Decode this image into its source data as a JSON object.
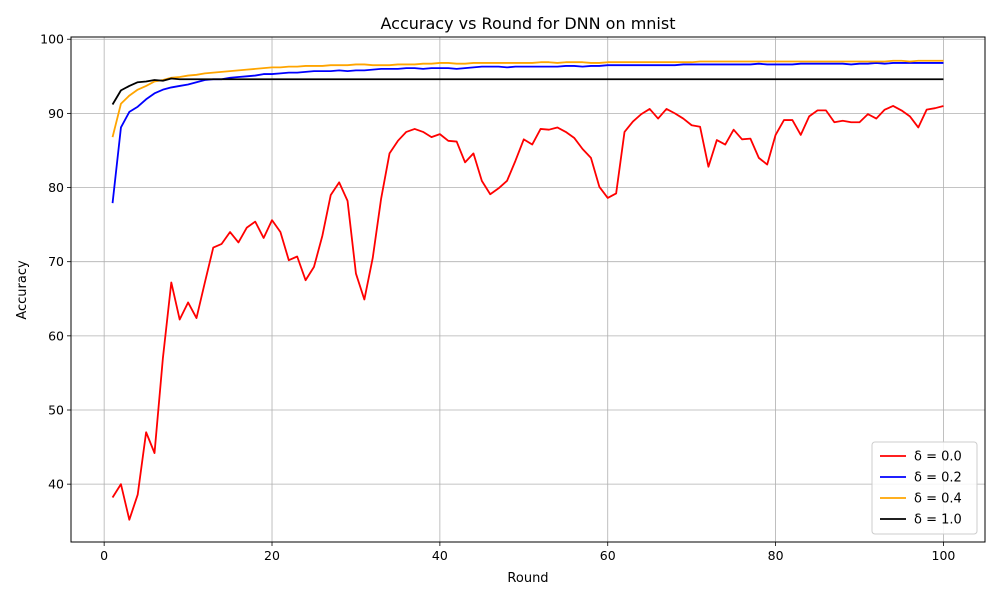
{
  "chart_data": {
    "type": "line",
    "title": "Accuracy vs Round for DNN on mnist",
    "xlabel": "Round",
    "ylabel": "Accuracy",
    "xlim": [
      -3.95,
      104.95
    ],
    "ylim": [
      32.2,
      100.3
    ],
    "xticks": [
      0,
      20,
      40,
      60,
      80,
      100
    ],
    "yticks": [
      40,
      50,
      60,
      70,
      80,
      90,
      100
    ],
    "grid": true,
    "legend_position": "lower-right",
    "x": [
      1,
      2,
      3,
      4,
      5,
      6,
      7,
      8,
      9,
      10,
      11,
      12,
      13,
      14,
      15,
      16,
      17,
      18,
      19,
      20,
      21,
      22,
      23,
      24,
      25,
      26,
      27,
      28,
      29,
      30,
      31,
      32,
      33,
      34,
      35,
      36,
      37,
      38,
      39,
      40,
      41,
      42,
      43,
      44,
      45,
      46,
      47,
      48,
      49,
      50,
      51,
      52,
      53,
      54,
      55,
      56,
      57,
      58,
      59,
      60,
      61,
      62,
      63,
      64,
      65,
      66,
      67,
      68,
      69,
      70,
      71,
      72,
      73,
      74,
      75,
      76,
      77,
      78,
      79,
      80,
      81,
      82,
      83,
      84,
      85,
      86,
      87,
      88,
      89,
      90,
      91,
      92,
      93,
      94,
      95,
      96,
      97,
      98,
      99,
      100
    ],
    "series": [
      {
        "name": "δ = 0.0",
        "color": "#ff0000",
        "values": [
          38.2,
          40.0,
          35.2,
          38.6,
          47.0,
          44.2,
          57.0,
          67.2,
          62.2,
          64.5,
          62.4,
          67.2,
          71.9,
          72.4,
          74.0,
          72.6,
          74.6,
          75.4,
          73.2,
          75.6,
          74.0,
          70.2,
          70.7,
          67.5,
          69.3,
          73.5,
          79.0,
          80.7,
          78.2,
          68.4,
          64.9,
          70.5,
          78.5,
          84.6,
          86.3,
          87.5,
          87.9,
          87.5,
          86.8,
          87.2,
          86.3,
          86.2,
          83.4,
          84.6,
          80.9,
          79.1,
          79.9,
          80.9,
          83.6,
          86.5,
          85.8,
          87.9,
          87.8,
          88.1,
          87.5,
          86.7,
          85.2,
          84.0,
          80.1,
          78.6,
          79.2,
          87.5,
          88.9,
          89.9,
          90.6,
          89.3,
          90.6,
          90.0,
          89.3,
          88.4,
          88.2,
          82.8,
          86.4,
          85.8,
          87.8,
          86.5,
          86.6,
          84.0,
          83.1,
          87.1,
          89.1,
          89.1,
          87.1,
          89.6,
          90.4,
          90.4,
          88.8,
          89.0,
          88.8,
          88.8,
          89.9,
          89.3,
          90.5,
          91.0,
          90.4,
          89.6,
          88.1,
          90.5,
          90.7,
          91.0
        ]
      },
      {
        "name": "δ = 0.2",
        "color": "#0000ff",
        "values": [
          77.9,
          88.1,
          90.2,
          90.9,
          91.9,
          92.7,
          93.2,
          93.5,
          93.7,
          93.9,
          94.2,
          94.5,
          94.6,
          94.6,
          94.8,
          94.9,
          95.0,
          95.1,
          95.3,
          95.3,
          95.4,
          95.5,
          95.5,
          95.6,
          95.7,
          95.7,
          95.7,
          95.8,
          95.7,
          95.8,
          95.8,
          95.9,
          96.0,
          96.0,
          96.0,
          96.1,
          96.1,
          96.0,
          96.1,
          96.1,
          96.1,
          96.0,
          96.1,
          96.2,
          96.3,
          96.3,
          96.3,
          96.2,
          96.3,
          96.3,
          96.3,
          96.3,
          96.3,
          96.3,
          96.4,
          96.4,
          96.3,
          96.4,
          96.4,
          96.5,
          96.5,
          96.5,
          96.5,
          96.5,
          96.5,
          96.5,
          96.5,
          96.5,
          96.6,
          96.6,
          96.6,
          96.6,
          96.6,
          96.6,
          96.6,
          96.6,
          96.6,
          96.7,
          96.6,
          96.6,
          96.6,
          96.6,
          96.7,
          96.7,
          96.7,
          96.7,
          96.7,
          96.7,
          96.6,
          96.7,
          96.7,
          96.8,
          96.7,
          96.8,
          96.8,
          96.8,
          96.8,
          96.8,
          96.8,
          96.8
        ]
      },
      {
        "name": "δ = 0.4",
        "color": "#ffa500",
        "values": [
          86.8,
          91.3,
          92.4,
          93.2,
          93.7,
          94.3,
          94.5,
          94.8,
          94.9,
          95.1,
          95.2,
          95.4,
          95.5,
          95.6,
          95.7,
          95.8,
          95.9,
          96.0,
          96.1,
          96.2,
          96.2,
          96.3,
          96.3,
          96.4,
          96.4,
          96.4,
          96.5,
          96.5,
          96.5,
          96.6,
          96.6,
          96.5,
          96.5,
          96.5,
          96.6,
          96.6,
          96.6,
          96.7,
          96.7,
          96.8,
          96.8,
          96.7,
          96.7,
          96.8,
          96.8,
          96.8,
          96.8,
          96.8,
          96.8,
          96.8,
          96.8,
          96.9,
          96.9,
          96.8,
          96.9,
          96.9,
          96.9,
          96.8,
          96.8,
          96.9,
          96.9,
          96.9,
          96.9,
          96.9,
          96.9,
          96.9,
          96.9,
          96.9,
          96.9,
          96.9,
          97.0,
          97.0,
          97.0,
          97.0,
          97.0,
          97.0,
          97.0,
          97.0,
          97.0,
          97.0,
          97.0,
          97.0,
          97.0,
          97.0,
          97.0,
          97.0,
          97.0,
          97.0,
          97.0,
          97.0,
          97.0,
          97.0,
          97.0,
          97.1,
          97.1,
          97.0,
          97.1,
          97.1,
          97.1,
          97.1
        ]
      },
      {
        "name": "δ = 1.0",
        "color": "#000000",
        "values": [
          91.2,
          93.1,
          93.7,
          94.2,
          94.3,
          94.5,
          94.4,
          94.7,
          94.6,
          94.6,
          94.6,
          94.6,
          94.6,
          94.6,
          94.6,
          94.6,
          94.6,
          94.6,
          94.6,
          94.6,
          94.6,
          94.6,
          94.6,
          94.6,
          94.6,
          94.6,
          94.6,
          94.6,
          94.6,
          94.6,
          94.6,
          94.6,
          94.6,
          94.6,
          94.6,
          94.6,
          94.6,
          94.6,
          94.6,
          94.6,
          94.6,
          94.6,
          94.6,
          94.6,
          94.6,
          94.6,
          94.6,
          94.6,
          94.6,
          94.6,
          94.6,
          94.6,
          94.6,
          94.6,
          94.6,
          94.6,
          94.6,
          94.6,
          94.6,
          94.6,
          94.6,
          94.6,
          94.6,
          94.6,
          94.6,
          94.6,
          94.6,
          94.6,
          94.6,
          94.6,
          94.6,
          94.6,
          94.6,
          94.6,
          94.6,
          94.6,
          94.6,
          94.6,
          94.6,
          94.6,
          94.6,
          94.6,
          94.6,
          94.6,
          94.6,
          94.6,
          94.6,
          94.6,
          94.6,
          94.6,
          94.6,
          94.6,
          94.6,
          94.6,
          94.6,
          94.6,
          94.6,
          94.6,
          94.6,
          94.6
        ]
      }
    ]
  }
}
